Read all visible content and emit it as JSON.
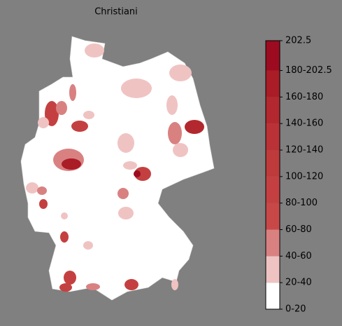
{
  "chart_data": {
    "type": "choropleth",
    "title": "Christiani",
    "colorbar": {
      "lim": [
        0,
        202.5
      ],
      "ticks": [
        {
          "value": 0,
          "label": "0-20"
        },
        {
          "value": 20,
          "label": "20-40"
        },
        {
          "value": 40,
          "label": "40-60"
        },
        {
          "value": 60,
          "label": "60-80"
        },
        {
          "value": 80,
          "label": "80-100"
        },
        {
          "value": 100,
          "label": "100-120"
        },
        {
          "value": 120,
          "label": "120-140"
        },
        {
          "value": 140,
          "label": "140-160"
        },
        {
          "value": 160,
          "label": "160-180"
        },
        {
          "value": 180,
          "label": "180-202.5"
        },
        202.5
      ],
      "colors": [
        "#ffffff",
        "#f0c3c3",
        "#d98181",
        "#c84848",
        "#c44040",
        "#bf3a3a",
        "#ba3236",
        "#b3282e",
        "#aa1c26",
        "#9c0b1f"
      ]
    }
  }
}
